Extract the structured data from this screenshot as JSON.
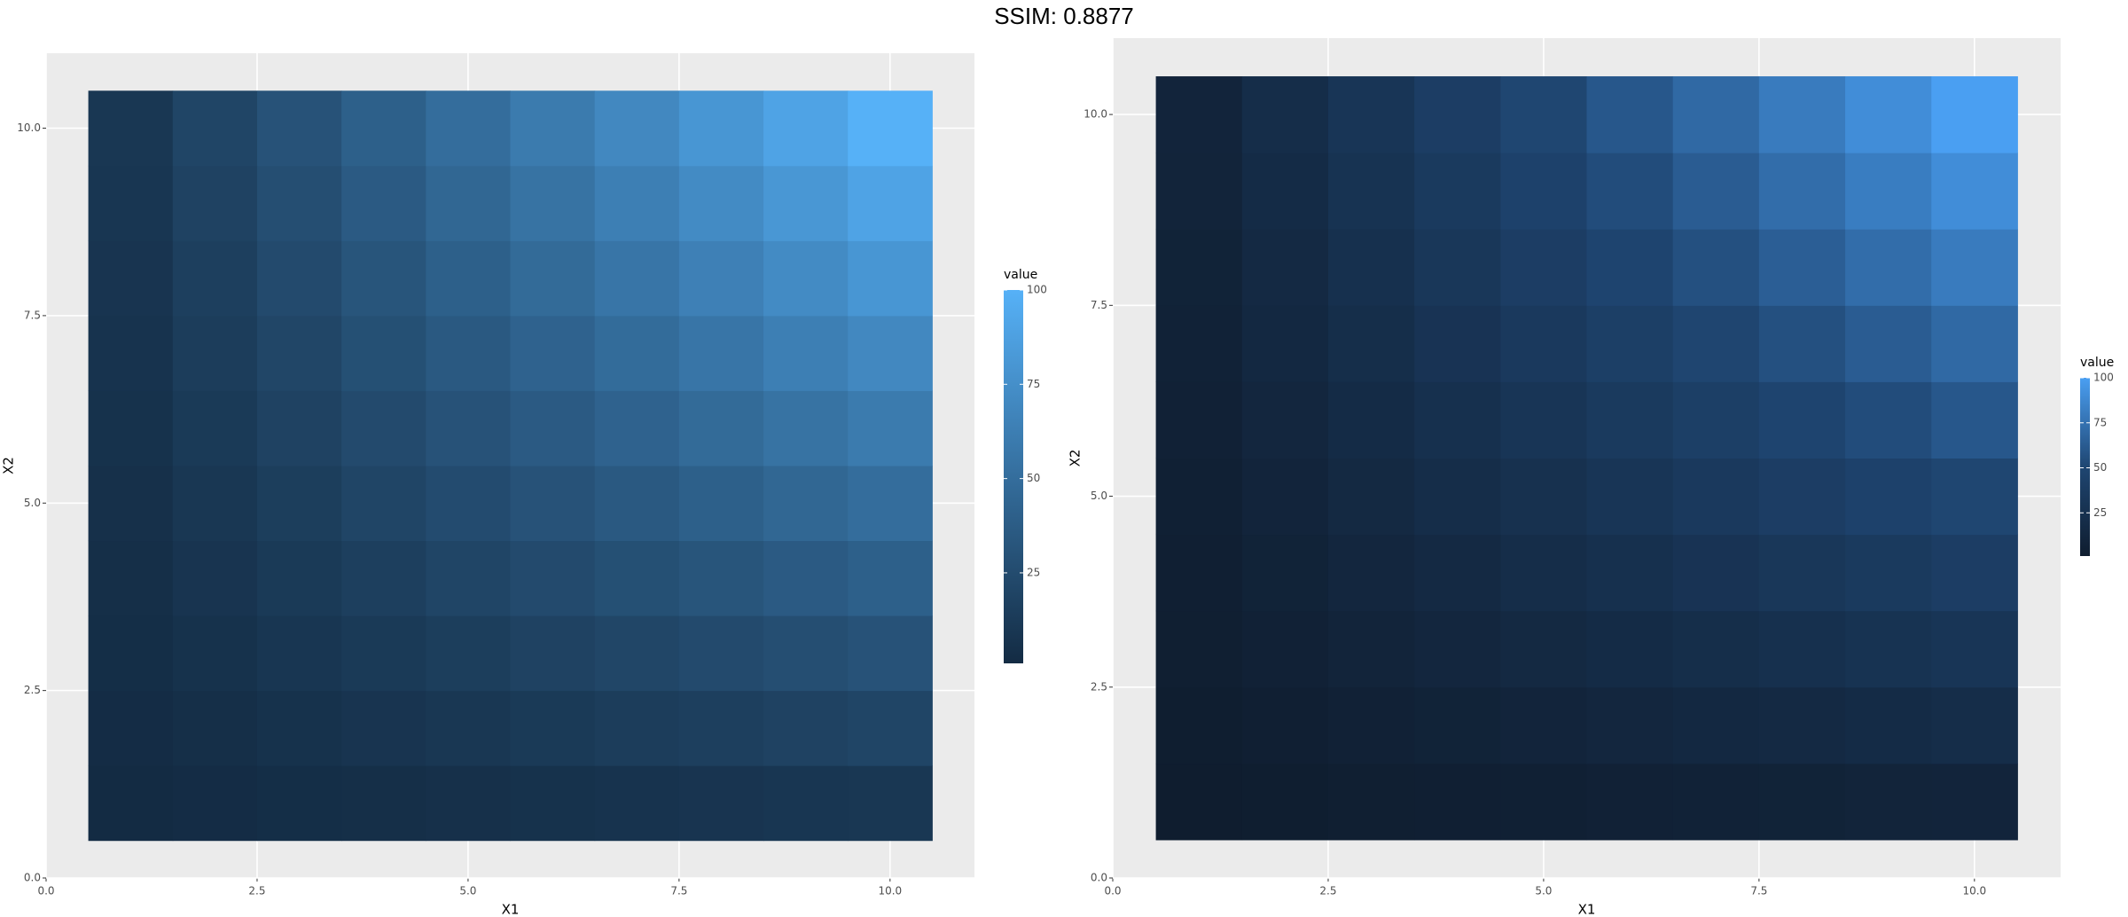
{
  "title": "SSIM: 0.8877",
  "chart_data": [
    {
      "type": "heatmap",
      "xlabel": "X1",
      "ylabel": "X2",
      "legend_title": "value",
      "x": [
        1,
        2,
        3,
        4,
        5,
        6,
        7,
        8,
        9,
        10
      ],
      "y": [
        1,
        2,
        3,
        4,
        5,
        6,
        7,
        8,
        9,
        10
      ],
      "values": [
        [
          1,
          2,
          3,
          4,
          5,
          6,
          7,
          8,
          9,
          10
        ],
        [
          2,
          4,
          6,
          8,
          10,
          12,
          14,
          16,
          18,
          20
        ],
        [
          3,
          6,
          9,
          12,
          15,
          18,
          21,
          24,
          27,
          30
        ],
        [
          4,
          8,
          12,
          16,
          20,
          24,
          28,
          32,
          36,
          40
        ],
        [
          5,
          10,
          15,
          20,
          25,
          30,
          35,
          40,
          45,
          50
        ],
        [
          6,
          12,
          18,
          24,
          30,
          36,
          42,
          48,
          54,
          60
        ],
        [
          7,
          14,
          21,
          28,
          35,
          42,
          49,
          56,
          63,
          70
        ],
        [
          8,
          16,
          24,
          32,
          40,
          48,
          56,
          64,
          72,
          80
        ],
        [
          9,
          18,
          27,
          36,
          45,
          54,
          63,
          72,
          81,
          90
        ],
        [
          10,
          20,
          30,
          40,
          50,
          60,
          70,
          80,
          90,
          100
        ]
      ],
      "colors": [
        "#132B43",
        "#56B1F7"
      ],
      "clim": [
        1,
        100
      ],
      "cticks": [
        25,
        50,
        75,
        100
      ],
      "xlim": [
        0,
        11
      ],
      "ylim": [
        0,
        11
      ],
      "xticks": [
        {
          "value": 0,
          "label": "0.0"
        },
        2.5,
        {
          "value": 5,
          "label": "5.0"
        },
        7.5,
        {
          "value": 10,
          "label": "10.0"
        }
      ],
      "yticks": [
        {
          "value": 0,
          "label": "0.0"
        },
        2.5,
        {
          "value": 5,
          "label": "5.0"
        },
        7.5,
        {
          "value": 10,
          "label": "10.0"
        }
      ],
      "grid": true
    },
    {
      "type": "heatmap",
      "xlabel": "X1",
      "ylabel": "X2",
      "legend_title": "value",
      "x": [
        1,
        2,
        3,
        4,
        5,
        6,
        7,
        8,
        9,
        10
      ],
      "y": [
        1,
        2,
        3,
        4,
        5,
        6,
        7,
        8,
        9,
        10
      ],
      "values": [
        [
          1,
          2,
          3,
          4,
          5,
          6,
          7,
          8,
          9,
          10
        ],
        [
          2,
          4,
          6,
          8,
          10,
          12,
          14,
          16,
          18,
          20
        ],
        [
          3,
          6,
          9,
          12,
          15,
          18,
          21,
          24,
          27,
          30
        ],
        [
          4,
          8,
          12,
          16,
          20,
          24,
          28,
          32,
          36,
          40
        ],
        [
          5,
          10,
          15,
          20,
          25,
          30,
          35,
          40,
          45,
          50
        ],
        [
          6,
          12,
          18,
          24,
          30,
          36,
          42,
          48,
          54,
          60
        ],
        [
          7,
          14,
          21,
          28,
          35,
          42,
          49,
          56,
          63,
          70
        ],
        [
          8,
          16,
          24,
          32,
          40,
          48,
          56,
          64,
          72,
          80
        ],
        [
          9,
          18,
          27,
          36,
          45,
          54,
          63,
          72,
          81,
          90
        ],
        [
          10,
          20,
          30,
          40,
          50,
          60,
          70,
          80,
          90,
          100
        ]
      ],
      "colors": [
        "#0F1D2F",
        "#1F4672",
        "#4A9FF2"
      ],
      "clim": [
        1,
        100
      ],
      "cticks": [
        25,
        50,
        75,
        100
      ],
      "xlim": [
        0,
        11
      ],
      "ylim": [
        0,
        11
      ],
      "xticks": [
        {
          "value": 0,
          "label": "0.0"
        },
        2.5,
        {
          "value": 5,
          "label": "5.0"
        },
        7.5,
        {
          "value": 10,
          "label": "10.0"
        }
      ],
      "yticks": [
        {
          "value": 0,
          "label": "0.0"
        },
        2.5,
        {
          "value": 5,
          "label": "5.0"
        },
        7.5,
        {
          "value": 10,
          "label": "10.0"
        }
      ],
      "grid": true
    }
  ]
}
